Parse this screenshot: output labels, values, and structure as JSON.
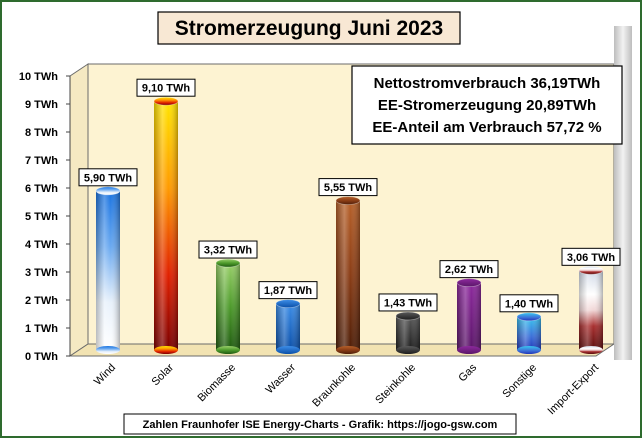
{
  "chart_data": {
    "type": "bar",
    "title": "Stromerzeugung Juni 2023",
    "unit": "TWh",
    "ylim": [
      0,
      10
    ],
    "y_ticks": [
      "0 TWh",
      "1 TWh",
      "2 TWh",
      "3 TWh",
      "4 TWh",
      "5 TWh",
      "6 TWh",
      "7 TWh",
      "8 TWh",
      "9 TWh",
      "10 TWh"
    ],
    "grid": false,
    "categories": [
      "Wind",
      "Solar",
      "Biomasse",
      "Wasser",
      "Braunkohle",
      "Steinkohle",
      "Gas",
      "Sonstige",
      "Import-Export"
    ],
    "values": [
      5.9,
      9.1,
      3.32,
      1.87,
      5.55,
      1.43,
      2.62,
      1.4,
      3.06
    ],
    "data_labels": [
      "5,90 TWh",
      "9,10 TWh",
      "3,32 TWh",
      "1,87 TWh",
      "5,55 TWh",
      "1,43 TWh",
      "2,62 TWh",
      "1,40 TWh",
      "3,06 TWh"
    ],
    "annotations": [
      "Nettostromverbrauch 36,19TWh",
      "EE-Stromerzeugung 20,89TWh",
      "EE-Anteil am Verbrauch 57,72 %"
    ],
    "source": "Zahlen Fraunhofer ISE  Energy-Charts - Grafik: https://jogo-gsw.com"
  },
  "colors": {
    "wall": "#fdf3d2",
    "floor": "#f4e6b8",
    "frame": "#cfcfcf"
  },
  "bar_styles": [
    "wind",
    "solar",
    "biomasse",
    "wasser",
    "braunkohle",
    "steinkohle",
    "gas",
    "sonstige",
    "import"
  ]
}
